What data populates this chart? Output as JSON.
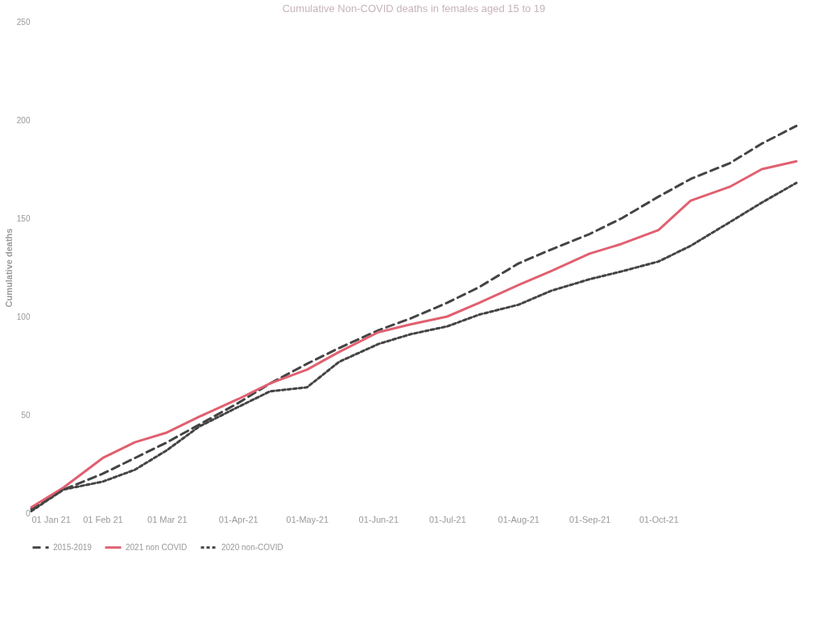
{
  "chart_data": {
    "type": "line",
    "title": "Cumulative Non-COVID deaths in females aged 15 to 19",
    "ylabel": "Cumulative deaths",
    "x": [
      "2021-01-01",
      "2021-01-15",
      "2021-02-01",
      "2021-02-15",
      "2021-03-01",
      "2021-03-15",
      "2021-04-01",
      "2021-04-15",
      "2021-05-01",
      "2021-05-15",
      "2021-06-01",
      "2021-06-15",
      "2021-07-01",
      "2021-07-15",
      "2021-08-01",
      "2021-08-15",
      "2021-09-01",
      "2021-09-15",
      "2021-10-01",
      "2021-10-15",
      "2021-11-01",
      "2021-11-15",
      "2021-11-30"
    ],
    "series": [
      {
        "name": "2015-2019",
        "color": "#444444",
        "line_style": "dashed",
        "values": [
          2,
          12,
          20,
          28,
          36,
          45,
          56,
          66,
          76,
          84,
          93,
          99,
          107,
          115,
          127,
          134,
          142,
          150,
          161,
          170,
          178,
          188,
          197
        ]
      },
      {
        "name": "2021 non COVID",
        "color": "#e06070",
        "line_style": "solid",
        "values": [
          3,
          13,
          28,
          36,
          41,
          49,
          58,
          66,
          73,
          82,
          92,
          96,
          100,
          107,
          116,
          123,
          132,
          137,
          144,
          159,
          166,
          175,
          179
        ]
      },
      {
        "name": "2020 non-COVID",
        "color": "#444444",
        "line_style": "dotted",
        "values": [
          1,
          12,
          16,
          22,
          32,
          44,
          54,
          62,
          64,
          77,
          86,
          91,
          95,
          101,
          106,
          113,
          119,
          123,
          128,
          136,
          148,
          158,
          168
        ]
      }
    ],
    "xlim": [
      "2021-01-01",
      "2021-11-30"
    ],
    "xticks": [
      {
        "value": "2021-01-01",
        "label": "01 Jan 21"
      },
      {
        "value": "2021-02-01",
        "label": "01 Feb 21"
      },
      {
        "value": "2021-03-01",
        "label": "01 Mar 21"
      },
      {
        "value": "2021-04-01",
        "label": "01-Apr-21"
      },
      {
        "value": "2021-05-01",
        "label": "01-May-21"
      },
      {
        "value": "2021-06-01",
        "label": "01-Jun-21"
      },
      {
        "value": "2021-07-01",
        "label": "01-Jul-21"
      },
      {
        "value": "2021-08-01",
        "label": "01-Aug-21"
      },
      {
        "value": "2021-09-01",
        "label": "01-Sep-21"
      },
      {
        "value": "2021-10-01",
        "label": "01-Oct-21"
      }
    ],
    "ylim": [
      0,
      250
    ],
    "yticks": [
      0,
      50,
      100,
      150,
      200,
      250
    ],
    "grid": false,
    "legend": "bottom",
    "marker": "none"
  }
}
